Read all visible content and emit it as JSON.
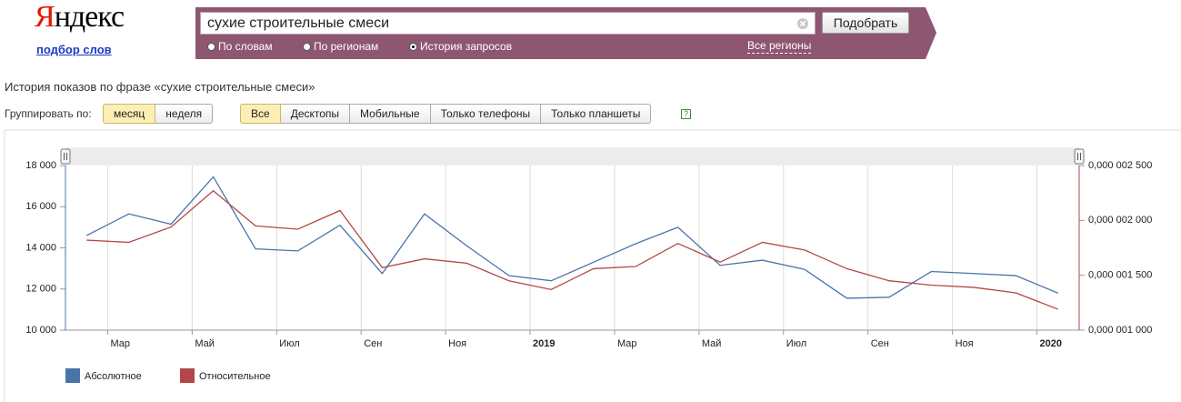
{
  "header": {
    "logo": "Яндекс",
    "service_link": "подбор слов"
  },
  "search": {
    "query": "сухие строительные смеси",
    "button": "Подобрать",
    "modes": [
      {
        "label": "По словам",
        "selected": false
      },
      {
        "label": "По регионам",
        "selected": false
      },
      {
        "label": "История запросов",
        "selected": true
      }
    ],
    "regions_link": "Все регионы"
  },
  "heading": "История показов по фразе «сухие строительные смеси»",
  "grouping": {
    "label": "Группировать по:",
    "options": [
      {
        "label": "месяц",
        "active": true
      },
      {
        "label": "неделя",
        "active": false
      }
    ]
  },
  "devices": {
    "options": [
      {
        "label": "Все",
        "active": true
      },
      {
        "label": "Десктопы",
        "active": false
      },
      {
        "label": "Мобильные",
        "active": false
      },
      {
        "label": "Только телефоны",
        "active": false
      },
      {
        "label": "Только планшеты",
        "active": false
      }
    ],
    "help": "?"
  },
  "chart_data": {
    "type": "line",
    "grid": true,
    "x": [
      1.5,
      2.5,
      3.5,
      4.5,
      5.5,
      6.5,
      7.5,
      8.5,
      9.5,
      10.5,
      11.5,
      12.5,
      13.5,
      14.5,
      15.5,
      16.5,
      17.5,
      18.5,
      19.5,
      20.5,
      21.5,
      22.5,
      23.5,
      24.5
    ],
    "xlim": [
      1,
      25
    ],
    "xticks": [
      {
        "value": 2,
        "label": "Мар"
      },
      {
        "value": 4,
        "label": "Май"
      },
      {
        "value": 6,
        "label": "Июл"
      },
      {
        "value": 8,
        "label": "Сен"
      },
      {
        "value": 10,
        "label": "Ноя"
      },
      {
        "value": 12,
        "label": "2019",
        "bold": true
      },
      {
        "value": 14,
        "label": "Мар"
      },
      {
        "value": 16,
        "label": "Май"
      },
      {
        "value": 18,
        "label": "Июл"
      },
      {
        "value": 20,
        "label": "Сен"
      },
      {
        "value": 22,
        "label": "Ноя"
      },
      {
        "value": 24,
        "label": "2020",
        "bold": true
      }
    ],
    "ylim": [
      10000,
      18000
    ],
    "yticks": [
      {
        "value": 10000,
        "label": "10 000"
      },
      {
        "value": 12000,
        "label": "12 000"
      },
      {
        "value": 14000,
        "label": "14 000"
      },
      {
        "value": 16000,
        "label": "16 000"
      },
      {
        "value": 18000,
        "label": "18 000"
      }
    ],
    "y2lim": [
      1e-06,
      2.5e-06
    ],
    "y2ticks": [
      {
        "value": 1e-06,
        "label": "0,000 001 000"
      },
      {
        "value": 1.5e-06,
        "label": "0,000 001 500"
      },
      {
        "value": 2e-06,
        "label": "0,000 002 000"
      },
      {
        "value": 2.5e-06,
        "label": "0,000 002 500"
      }
    ],
    "series": [
      {
        "name": "Абсолютное",
        "color": "#4a74a8",
        "values": [
          14600,
          15650,
          15150,
          17450,
          13950,
          13850,
          15100,
          12750,
          15650,
          14100,
          12650,
          12400,
          13300,
          14200,
          15000,
          13150,
          13400,
          12950,
          11550,
          11600,
          12850,
          12750,
          12650,
          11800
        ]
      },
      {
        "name": "Относительное",
        "color": "#b34747",
        "axis": "y2",
        "values": [
          1.82e-06,
          1.8e-06,
          1.94e-06,
          2.27e-06,
          1.95e-06,
          1.92e-06,
          2.09e-06,
          1.57e-06,
          1.65e-06,
          1.61e-06,
          1.45e-06,
          1.37e-06,
          1.56e-06,
          1.58e-06,
          1.79e-06,
          1.62e-06,
          1.8e-06,
          1.73e-06,
          1.56e-06,
          1.45e-06,
          1.41e-06,
          1.39e-06,
          1.34e-06,
          1.19e-06
        ]
      }
    ]
  }
}
